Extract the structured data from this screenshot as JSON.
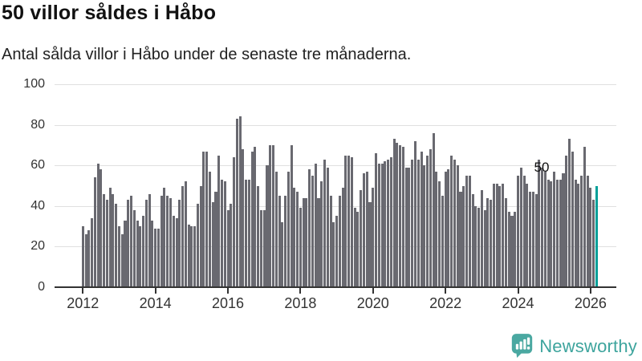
{
  "header": {
    "title": "50 villor såldes i Håbo",
    "subtitle": "Antal sålda villor i Håbo under de senaste tre månaderna."
  },
  "annotation": {
    "label": "50"
  },
  "branding": {
    "name": "Newsworthy",
    "icon": "newsworthy-speech-bubble-chart-icon"
  },
  "colors": {
    "bar": "#696970",
    "highlight": "#00a099",
    "grid": "#e0e0e0",
    "axis": "#333333",
    "tick_text": "#333333",
    "logo_teal": "#3da49d"
  },
  "chart_data": {
    "type": "bar",
    "title": "50 villor såldes i Håbo",
    "subtitle": "Antal sålda villor i Håbo under de senaste tre månaderna.",
    "xlabel": "",
    "ylabel": "",
    "start_period": "2012-01",
    "frequency": "monthly",
    "ylim": [
      0,
      100
    ],
    "y_ticks": [
      0,
      20,
      40,
      60,
      80,
      100
    ],
    "x_tick_labels": [
      "2012",
      "2014",
      "2016",
      "2018",
      "2020",
      "2022",
      "2024",
      "2026"
    ],
    "grid": true,
    "legend": false,
    "series": [
      {
        "name": "Antal sålda villor",
        "values": [
          30,
          26,
          28,
          34,
          54,
          61,
          58,
          46,
          43,
          49,
          46,
          41,
          30,
          26,
          33,
          43,
          45,
          38,
          33,
          30,
          35,
          43,
          46,
          33,
          29,
          29,
          45,
          49,
          45,
          44,
          35,
          34,
          43,
          50,
          52,
          31,
          30,
          30,
          41,
          50,
          67,
          67,
          57,
          42,
          47,
          65,
          53,
          52,
          38,
          41,
          64,
          83,
          84,
          68,
          53,
          53,
          67,
          69,
          50,
          38,
          38,
          60,
          70,
          70,
          57,
          45,
          32,
          45,
          57,
          70,
          49,
          47,
          39,
          44,
          44,
          58,
          55,
          61,
          44,
          52,
          63,
          59,
          45,
          32,
          35,
          45,
          49,
          65,
          65,
          64,
          39,
          37,
          48,
          56,
          57,
          42,
          49,
          66,
          61,
          61,
          62,
          63,
          64,
          73,
          71,
          70,
          69,
          59,
          59,
          63,
          72,
          63,
          67,
          60,
          65,
          68,
          76,
          57,
          52,
          45,
          57,
          58,
          65,
          63,
          60,
          47,
          50,
          55,
          55,
          46,
          40,
          39,
          48,
          38,
          44,
          43,
          51,
          51,
          50,
          51,
          44,
          37,
          35,
          37,
          55,
          59,
          55,
          51,
          47,
          47,
          46,
          63,
          59,
          57,
          53,
          52,
          57,
          53,
          53,
          56,
          65,
          73,
          67,
          53,
          51,
          55,
          69,
          55,
          49,
          43,
          50
        ]
      }
    ],
    "highlight_last_bar": {
      "value": 50,
      "label": "50",
      "color": "#00a099"
    }
  }
}
